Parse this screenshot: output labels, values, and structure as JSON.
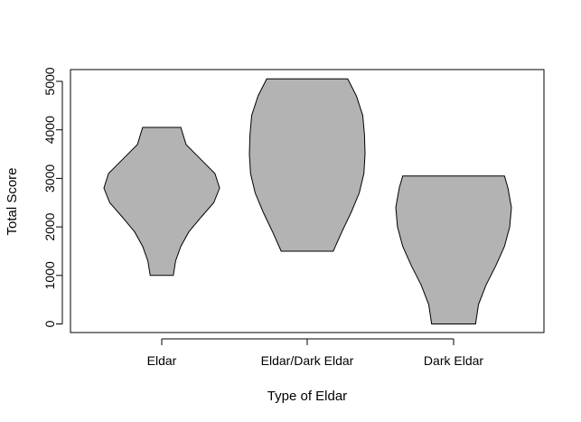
{
  "chart_data": {
    "type": "violin",
    "title": "",
    "xlabel": "Type of Eldar",
    "ylabel": "Total Score",
    "categories": [
      "Eldar",
      "Eldar/Dark Eldar",
      "Dark Eldar"
    ],
    "yticks": [
      0,
      1000,
      2000,
      3000,
      4000,
      5000
    ],
    "ylim": [
      -150,
      5250
    ],
    "fill_color": "#b3b3b3",
    "stroke_color": "#000000",
    "violins": [
      {
        "category": "Eldar",
        "min": 1000,
        "max": 4050,
        "profile": [
          [
            1000,
            0.2
          ],
          [
            1300,
            0.24
          ],
          [
            1600,
            0.33
          ],
          [
            1900,
            0.47
          ],
          [
            2200,
            0.68
          ],
          [
            2500,
            0.9
          ],
          [
            2800,
            1.0
          ],
          [
            3100,
            0.92
          ],
          [
            3400,
            0.67
          ],
          [
            3700,
            0.42
          ],
          [
            4050,
            0.33
          ]
        ]
      },
      {
        "category": "Eldar/Dark Eldar",
        "min": 1500,
        "max": 5050,
        "profile": [
          [
            1500,
            0.45
          ],
          [
            1900,
            0.6
          ],
          [
            2300,
            0.76
          ],
          [
            2700,
            0.9
          ],
          [
            3100,
            0.98
          ],
          [
            3500,
            1.0
          ],
          [
            3900,
            0.99
          ],
          [
            4300,
            0.96
          ],
          [
            4700,
            0.85
          ],
          [
            5050,
            0.7
          ]
        ]
      },
      {
        "category": "Dark Eldar",
        "min": 0,
        "max": 3050,
        "profile": [
          [
            0,
            0.38
          ],
          [
            400,
            0.43
          ],
          [
            800,
            0.56
          ],
          [
            1200,
            0.73
          ],
          [
            1600,
            0.88
          ],
          [
            2000,
            0.97
          ],
          [
            2400,
            1.0
          ],
          [
            2800,
            0.94
          ],
          [
            3050,
            0.88
          ]
        ]
      }
    ]
  }
}
